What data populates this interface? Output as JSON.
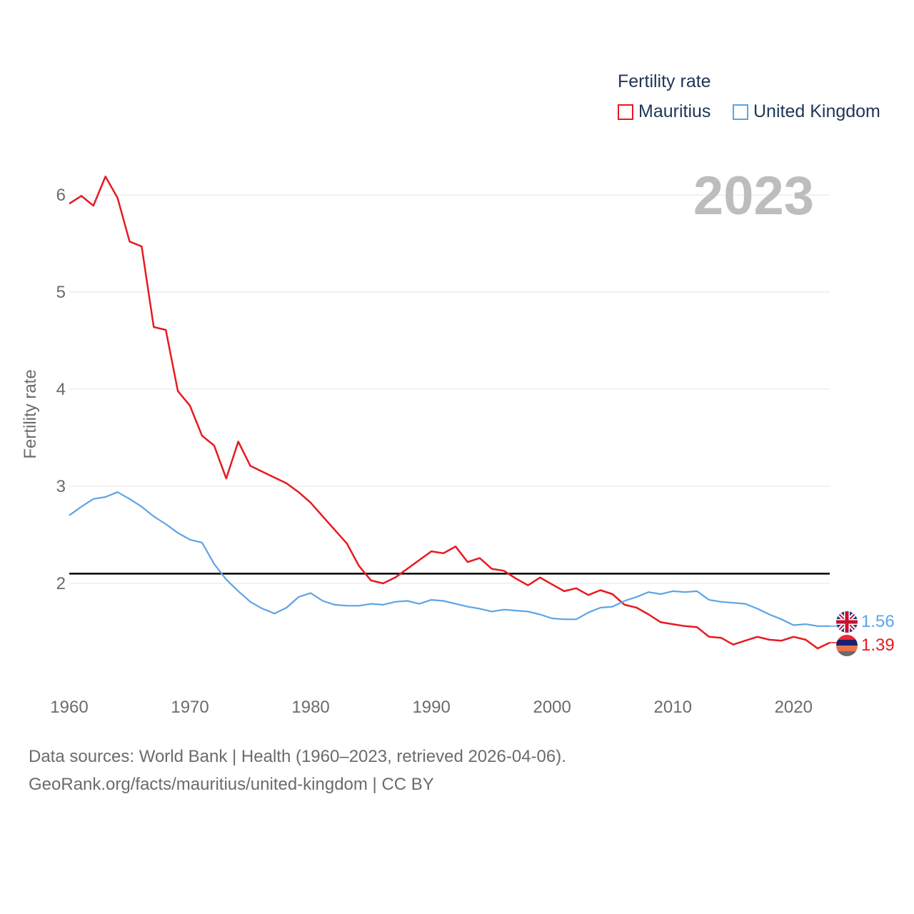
{
  "chart_data": {
    "type": "line",
    "year_label": "2023",
    "ylabel": "Fertility rate",
    "xlabel": "",
    "xlim": [
      1960,
      2023
    ],
    "ylim": [
      1.0,
      6.5
    ],
    "x_ticks": [
      1960,
      1970,
      1980,
      1990,
      2000,
      2010,
      2020
    ],
    "y_ticks": [
      2,
      3,
      4,
      5,
      6
    ],
    "reference_line": 2.1,
    "legend": {
      "title": "Fertility rate",
      "placement": "top-right"
    },
    "x": [
      1960,
      1961,
      1962,
      1963,
      1964,
      1965,
      1966,
      1967,
      1968,
      1969,
      1970,
      1971,
      1972,
      1973,
      1974,
      1975,
      1976,
      1977,
      1978,
      1979,
      1980,
      1981,
      1982,
      1983,
      1984,
      1985,
      1986,
      1987,
      1988,
      1989,
      1990,
      1991,
      1992,
      1993,
      1994,
      1995,
      1996,
      1997,
      1998,
      1999,
      2000,
      2001,
      2002,
      2003,
      2004,
      2005,
      2006,
      2007,
      2008,
      2009,
      2010,
      2011,
      2012,
      2013,
      2014,
      2015,
      2016,
      2017,
      2018,
      2019,
      2020,
      2021,
      2022,
      2023
    ],
    "series": [
      {
        "name": "Mauritius",
        "color": "#e8191f",
        "end_label": "1.39",
        "values": [
          5.91,
          5.99,
          5.89,
          6.19,
          5.97,
          5.52,
          5.47,
          4.64,
          4.61,
          3.98,
          3.83,
          3.52,
          3.42,
          3.08,
          3.46,
          3.21,
          3.15,
          3.09,
          3.03,
          2.94,
          2.83,
          2.69,
          2.55,
          2.41,
          2.18,
          2.03,
          2.0,
          2.06,
          2.15,
          2.24,
          2.33,
          2.31,
          2.38,
          2.22,
          2.26,
          2.15,
          2.13,
          2.05,
          1.98,
          2.06,
          1.99,
          1.92,
          1.95,
          1.88,
          1.93,
          1.89,
          1.78,
          1.75,
          1.68,
          1.6,
          1.58,
          1.56,
          1.55,
          1.45,
          1.44,
          1.37,
          1.41,
          1.45,
          1.42,
          1.41,
          1.45,
          1.42,
          1.33,
          1.39
        ]
      },
      {
        "name": "United Kingdom",
        "color": "#5da4e6",
        "end_label": "1.56",
        "values": [
          2.7,
          2.79,
          2.87,
          2.89,
          2.94,
          2.87,
          2.79,
          2.69,
          2.61,
          2.52,
          2.45,
          2.42,
          2.2,
          2.04,
          1.92,
          1.81,
          1.74,
          1.69,
          1.75,
          1.86,
          1.9,
          1.82,
          1.78,
          1.77,
          1.77,
          1.79,
          1.78,
          1.81,
          1.82,
          1.79,
          1.83,
          1.82,
          1.79,
          1.76,
          1.74,
          1.71,
          1.73,
          1.72,
          1.71,
          1.68,
          1.64,
          1.63,
          1.63,
          1.7,
          1.75,
          1.76,
          1.82,
          1.86,
          1.91,
          1.89,
          1.92,
          1.91,
          1.92,
          1.83,
          1.81,
          1.8,
          1.79,
          1.74,
          1.68,
          1.63,
          1.57,
          1.58,
          1.56,
          1.56
        ]
      }
    ]
  },
  "footer": {
    "line1": "Data sources: World Bank | Health (1960–2023, retrieved 2026-04-06).",
    "line2": "GeoRank.org/facts/mauritius/united-kingdom | CC BY"
  }
}
